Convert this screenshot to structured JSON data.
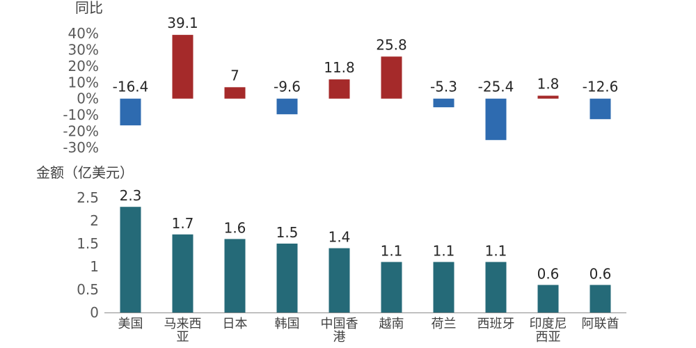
{
  "chart_data": [
    {
      "type": "bar",
      "title": "同比",
      "ylabel": "同比",
      "ylim": [
        -30,
        40
      ],
      "ytick_labels": [
        "40%",
        "30%",
        "20%",
        "10%",
        "0%",
        "-10%",
        "-20%",
        "-30%"
      ],
      "ytick_values": [
        40,
        30,
        20,
        10,
        0,
        -10,
        -20,
        -30
      ],
      "categories": [
        "美国",
        "马来西亚",
        "日本",
        "韩国",
        "中国香港",
        "越南",
        "荷兰",
        "西班牙",
        "印度尼西亚",
        "阿联酋"
      ],
      "values": [
        -16.4,
        39.1,
        7,
        -9.6,
        11.8,
        25.8,
        -5.3,
        -25.4,
        1.8,
        -12.6
      ],
      "value_labels": [
        "-16.4",
        "39.1",
        "7",
        "-9.6",
        "11.8",
        "25.8",
        "-5.3",
        "-25.4",
        "1.8",
        "-12.6"
      ],
      "colors": {
        "positive": "#a52a2a",
        "negative": "#2e6bb0"
      }
    },
    {
      "type": "bar",
      "title": "金额（亿美元）",
      "ylabel": "金额（亿美元）",
      "ylim": [
        0,
        2.5
      ],
      "ytick_labels": [
        "2.5",
        "2",
        "1.5",
        "1",
        "0.5",
        "0"
      ],
      "ytick_values": [
        2.5,
        2,
        1.5,
        1,
        0.5,
        0
      ],
      "categories": [
        "美国",
        "马来西亚",
        "日本",
        "韩国",
        "中国香港",
        "越南",
        "荷兰",
        "西班牙",
        "印度尼西亚",
        "阿联酋"
      ],
      "category_lines": [
        [
          "美国"
        ],
        [
          "马来西",
          "亚"
        ],
        [
          "日本"
        ],
        [
          "韩国"
        ],
        [
          "中国香",
          "港"
        ],
        [
          "越南"
        ],
        [
          "荷兰"
        ],
        [
          "西班牙"
        ],
        [
          "印度尼",
          "西亚"
        ],
        [
          "阿联酋"
        ]
      ],
      "values": [
        2.3,
        1.7,
        1.6,
        1.5,
        1.4,
        1.1,
        1.1,
        1.1,
        0.6,
        0.6
      ],
      "value_labels": [
        "2.3",
        "1.7",
        "1.6",
        "1.5",
        "1.4",
        "1.1",
        "1.1",
        "1.1",
        "0.6",
        "0.6"
      ],
      "colors": {
        "bar": "#256a78",
        "axis": "#8c8c8c"
      }
    }
  ]
}
